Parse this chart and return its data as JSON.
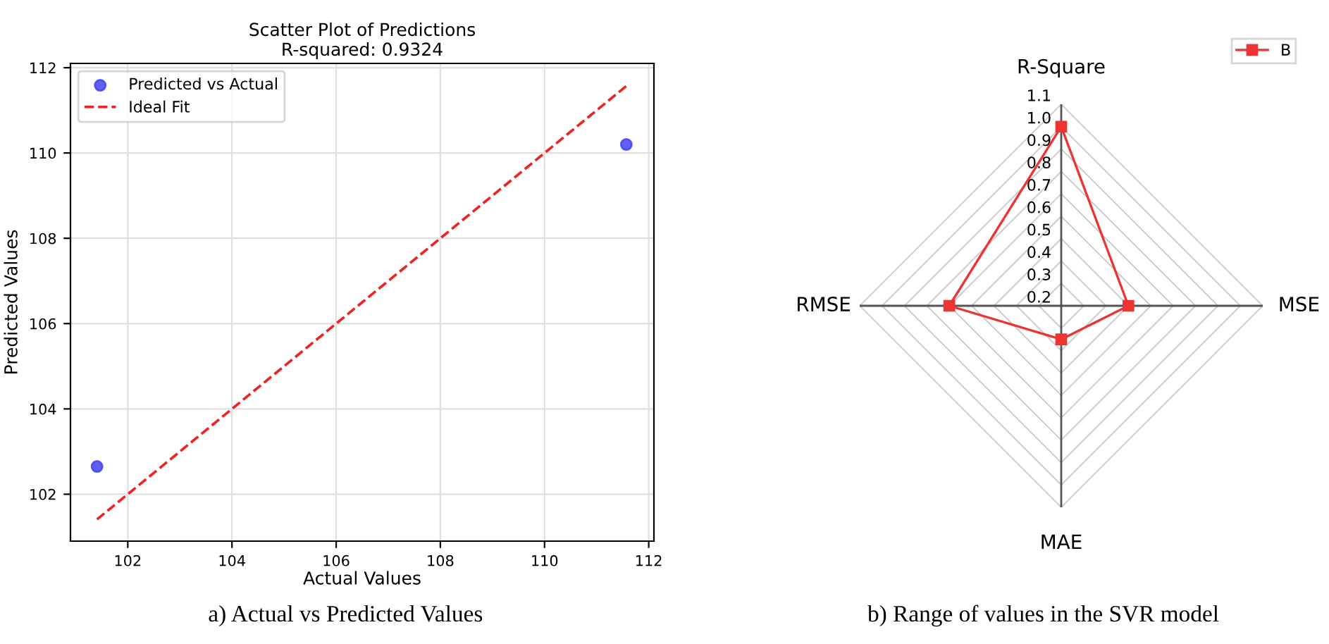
{
  "chart_data": [
    {
      "type": "scatter",
      "title": "Scatter Plot of Predictions\nR-squared: 0.9324",
      "xlabel": "Actual Values",
      "ylabel": "Predicted Values",
      "annotations": [
        "a) Actual vs Predicted Values"
      ],
      "series": [
        {
          "type": "scatter",
          "name": "Predicted vs Actual",
          "color": "#4444ee",
          "x": [
            101.41,
            111.57
          ],
          "values": [
            102.65,
            110.2
          ],
          "marker": "circle"
        },
        {
          "type": "line",
          "name": "Ideal Fit",
          "color": "#ee2222",
          "x": [
            101.41,
            111.6
          ],
          "values": [
            101.41,
            111.6
          ],
          "line_style": "dashed",
          "marker": "none"
        }
      ],
      "xlim": [
        100.9,
        112.1
      ],
      "ylim": [
        100.9,
        112.1
      ],
      "xticks": [
        102,
        104,
        106,
        108,
        110,
        112
      ],
      "yticks": [
        102,
        104,
        106,
        108,
        110,
        112
      ],
      "grid": true,
      "legend": "top left"
    },
    {
      "type": "radar",
      "categories": [
        "R-Square",
        "MSE",
        "MAE",
        "RMSE"
      ],
      "annotations": [
        "b) Range of values in the SVR model"
      ],
      "series": [
        {
          "name": "B",
          "color": "#ee3333",
          "values": [
            1.0,
            0.5,
            0.35,
            0.7
          ]
        }
      ],
      "ylim": [
        0.2,
        1.1
      ],
      "yticks": [
        0.2,
        0.3,
        0.4,
        0.5,
        0.6,
        0.7,
        0.8,
        0.9,
        {
          "value": 1,
          "label": "1.0"
        },
        1.1
      ],
      "marker": "square",
      "line_style": "solid",
      "grid": true,
      "legend": "top right"
    }
  ]
}
